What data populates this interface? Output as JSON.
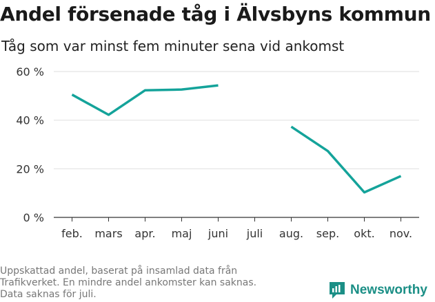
{
  "title": "Andel försenade tåg i Älvsbyns kommun",
  "subtitle": "Tåg som var minst fem minuter sena vid ankomst",
  "footnote": [
    "Uppskattad andel, baserat på insamlad data från",
    "Trafikverket. En mindre andel ankomster kan saknas.",
    "Data saknas för juli."
  ],
  "brand": {
    "name": "Newsworthy",
    "icon": "newsworthy-logo-icon"
  },
  "colors": {
    "line": "#14a39a",
    "grid": "#e3e3e3",
    "text": "#333333",
    "brand": "#1b8f86"
  },
  "chart_data": {
    "type": "line",
    "categories": [
      "feb.",
      "mars",
      "apr.",
      "maj",
      "juni",
      "juli",
      "aug.",
      "sep.",
      "okt.",
      "nov."
    ],
    "series": [
      {
        "values": [
          50.5,
          42.2,
          52.3,
          52.6,
          54.3,
          null,
          37.3,
          27.3,
          10.3,
          17.0
        ]
      }
    ],
    "ylim": [
      0,
      60
    ],
    "yticks": [
      0,
      20,
      40,
      60
    ],
    "ytick_labels": [
      "0 %",
      "20 %",
      "40 %",
      "60 %"
    ],
    "grid": true,
    "legend": "none"
  }
}
